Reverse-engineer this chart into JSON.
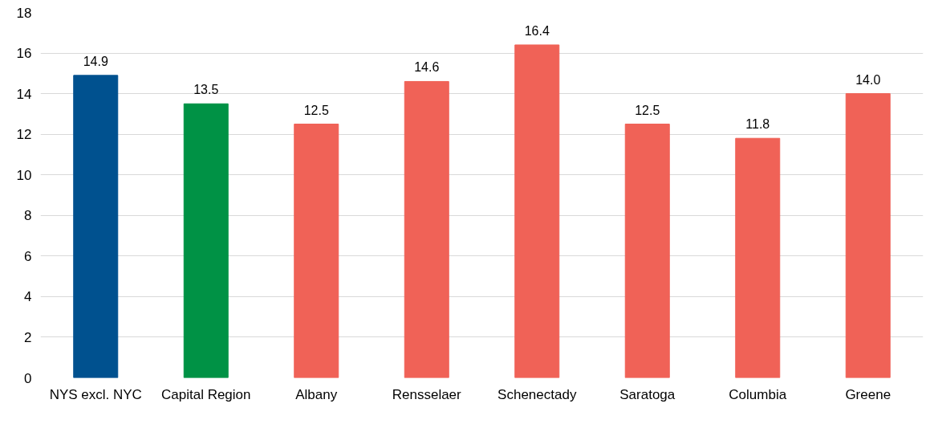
{
  "chart_data": {
    "type": "bar",
    "categories": [
      "NYS excl. NYC",
      "Capital Region",
      "Albany",
      "Rensselaer",
      "Schenectady",
      "Saratoga",
      "Columbia",
      "Greene"
    ],
    "values": [
      14.9,
      13.5,
      12.5,
      14.6,
      16.4,
      12.5,
      11.8,
      14.0
    ],
    "colors": [
      "#00518f",
      "#009245",
      "#f06257",
      "#f06257",
      "#f06257",
      "#f06257",
      "#f06257",
      "#f06257"
    ],
    "value_labels": [
      "14.9",
      "13.5",
      "12.5",
      "14.6",
      "16.4",
      "12.5",
      "11.8",
      "14.0"
    ],
    "ylim": [
      0,
      18
    ],
    "yticks": [
      0,
      2,
      4,
      6,
      8,
      10,
      12,
      14,
      16,
      18
    ],
    "grid": "y"
  }
}
